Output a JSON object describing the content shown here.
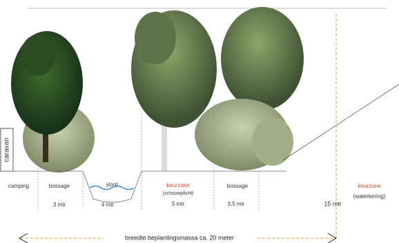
{
  "side_label": "caravan",
  "zones": [
    {
      "name": "camping"
    },
    {
      "name": "bossage",
      "width": "3 mtr"
    },
    {
      "name": "sloot",
      "width": "4 mtr"
    },
    {
      "name": "keurzone",
      "note": "(schouwplicht)",
      "width": "5 mtr"
    },
    {
      "name": "bossage",
      "width": "3,5 mtr"
    }
  ],
  "total_width": "15 mtr",
  "outer_zone": {
    "name": "keurzone",
    "note": "(waterkering)"
  },
  "dimension_label": "breedte beplantingsmassa ca. 20 meter"
}
